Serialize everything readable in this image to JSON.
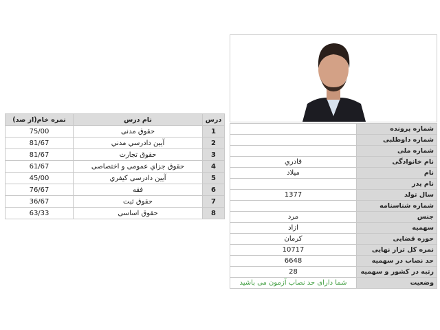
{
  "scores_table": {
    "headers": {
      "score": "نمره خام(از صد)",
      "course": "نام درس",
      "number": "درس"
    },
    "rows": [
      {
        "number": "1",
        "course": "حقوق مدنی",
        "score": "75/00"
      },
      {
        "number": "2",
        "course": "آیین دادرسي مدني",
        "score": "81/67"
      },
      {
        "number": "3",
        "course": "حقوق تجارت",
        "score": "81/67"
      },
      {
        "number": "4",
        "course": "حقوق جزاي عمومی و اختصاصی",
        "score": "61/67"
      },
      {
        "number": "5",
        "course": "آيين دادرسی کيفري",
        "score": "45/00"
      },
      {
        "number": "6",
        "course": "فقه",
        "score": "76/67"
      },
      {
        "number": "7",
        "course": "حقوق ثبت",
        "score": "36/67"
      },
      {
        "number": "8",
        "course": "حقوق اساسی",
        "score": "63/33"
      }
    ]
  },
  "profile": {
    "rows": [
      {
        "label": "شماره پرونده",
        "value": ""
      },
      {
        "label": "شماره داوطلبی",
        "value": ""
      },
      {
        "label": "شماره ملی",
        "value": ""
      },
      {
        "label": "نام خانوادگی",
        "value": "قادري"
      },
      {
        "label": "نام",
        "value": "میلاد"
      },
      {
        "label": "نام پدر",
        "value": ""
      },
      {
        "label": "سال تولد",
        "value": "1377"
      },
      {
        "label": "شماره شناسنامه",
        "value": ""
      },
      {
        "label": "جنس",
        "value": "مرد"
      },
      {
        "label": "سهمیه",
        "value": "ازاد"
      },
      {
        "label": "حوزه قضایی",
        "value": "کرمان"
      },
      {
        "label": "نمره کل تراز نهایی",
        "value": "10717"
      },
      {
        "label": "حد نصاب در سهمیه",
        "value": "6648"
      },
      {
        "label": "رتبه در کشور و سهمیه",
        "value": "28"
      },
      {
        "label": "وضعیت",
        "value": "شما دارای حد نصاب آزمون می باشید"
      }
    ],
    "status_color": "#3a9a3a"
  }
}
